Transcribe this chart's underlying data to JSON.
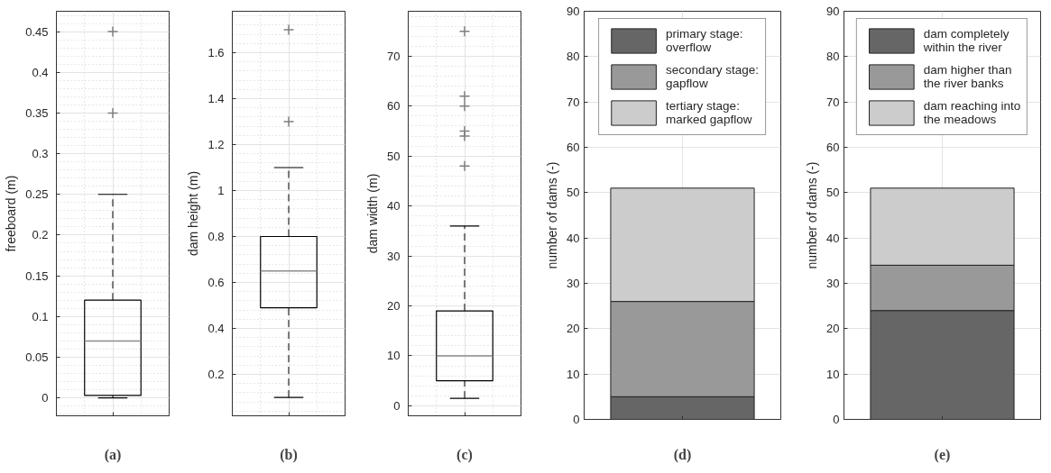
{
  "chart_data": [
    {
      "type": "box",
      "xlabel": "(a)",
      "ylabel": "freeboard (m)",
      "categories": [
        null
      ],
      "ylim": [
        -0.022,
        0.475
      ],
      "yticks": [
        0,
        0.05,
        0.1,
        0.15,
        0.2,
        0.25,
        0.3,
        0.35,
        0.4,
        0.45
      ],
      "grid": true,
      "boxes": [
        {
          "low": 0,
          "q1": 0.003,
          "median": 0.07,
          "q3": 0.12,
          "high": 0.25,
          "outliers": [
            0.35,
            0.45
          ]
        }
      ]
    },
    {
      "type": "box",
      "xlabel": "(b)",
      "ylabel": "dam height (m)",
      "categories": [
        null
      ],
      "ylim": [
        0.02,
        1.78
      ],
      "yticks": [
        0.2,
        0.4,
        0.6,
        0.8,
        1,
        1.2,
        1.4,
        1.6
      ],
      "grid": true,
      "boxes": [
        {
          "low": 0.1,
          "q1": 0.49,
          "median": 0.65,
          "q3": 0.8,
          "high": 1.1,
          "outliers": [
            1.3,
            1.7
          ]
        }
      ]
    },
    {
      "type": "box",
      "xlabel": "(c)",
      "ylabel": "dam width (m)",
      "categories": [
        null
      ],
      "ylim": [
        -2,
        79
      ],
      "yticks": [
        0,
        10,
        20,
        30,
        40,
        50,
        60,
        70
      ],
      "grid": true,
      "boxes": [
        {
          "low": 1.5,
          "q1": 5,
          "median": 10,
          "q3": 19,
          "high": 36,
          "outliers": [
            48,
            54,
            55,
            60,
            62,
            75
          ]
        }
      ]
    },
    {
      "type": "bar",
      "stacked": true,
      "xlabel": "(d)",
      "ylabel": "number of dams (-)",
      "categories": [
        null
      ],
      "ylim": [
        0,
        90
      ],
      "yticks": [
        0,
        10,
        20,
        30,
        40,
        50,
        60,
        70,
        80,
        90
      ],
      "grid": true,
      "legend": "top",
      "series": [
        {
          "name": "primary stage: overflow",
          "color": "#666666",
          "values": [
            5
          ]
        },
        {
          "name": "secondary stage: gapflow",
          "color": "#999999",
          "values": [
            21
          ]
        },
        {
          "name": "tertiary stage: marked gapflow",
          "color": "#cccccc",
          "values": [
            25
          ]
        }
      ]
    },
    {
      "type": "bar",
      "stacked": true,
      "xlabel": "(e)",
      "ylabel": "number of dams (-)",
      "categories": [
        null
      ],
      "ylim": [
        0,
        90
      ],
      "yticks": [
        0,
        10,
        20,
        30,
        40,
        50,
        60,
        70,
        80,
        90
      ],
      "grid": true,
      "legend": "top",
      "series": [
        {
          "name": "dam completely within the river",
          "color": "#666666",
          "values": [
            24
          ]
        },
        {
          "name": "dam higher than the river banks",
          "color": "#999999",
          "values": [
            10
          ]
        },
        {
          "name": "dam reaching into the meadows",
          "color": "#cccccc",
          "values": [
            17
          ]
        }
      ]
    }
  ]
}
